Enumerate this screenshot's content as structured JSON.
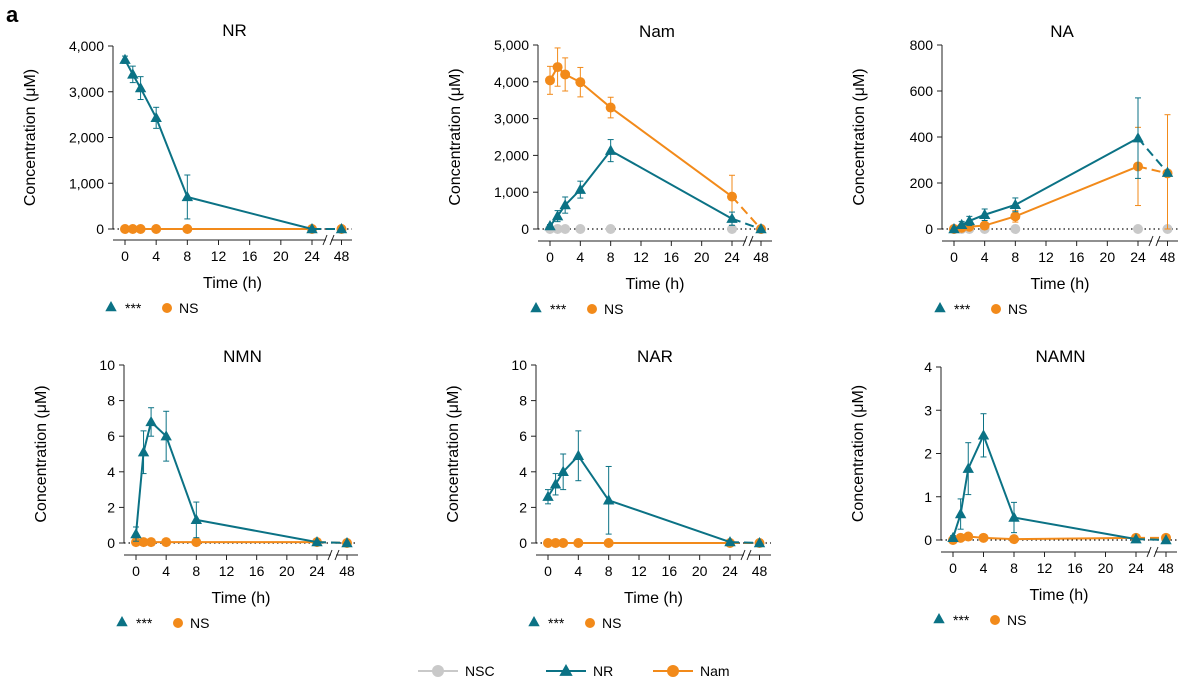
{
  "panel_letter": "a",
  "legend": {
    "items": [
      {
        "label": "NSC",
        "color": "#c9c9c9",
        "marker": "circle"
      },
      {
        "label": "NR",
        "color": "#0b7285",
        "marker": "triangle"
      },
      {
        "label": "Nam",
        "color": "#f28a1a",
        "marker": "circle"
      }
    ]
  },
  "colors": {
    "NR": "#0b7285",
    "Nam": "#f28a1a",
    "NSC": "#c9c9c9"
  },
  "chart_data": [
    {
      "type": "line",
      "title": "NR",
      "xlabel": "Time (h)",
      "ylabel": "Concentration (μM)",
      "xticks": [
        "0",
        "4",
        "8",
        "12",
        "16",
        "20",
        "24",
        "48"
      ],
      "ylim": [
        0,
        4000
      ],
      "yticks": [
        "0",
        "1,000",
        "2,000",
        "3,000",
        "4,000"
      ],
      "x": [
        0,
        1,
        2,
        4,
        8,
        24,
        48
      ],
      "series": [
        {
          "name": "NR",
          "values": [
            3700,
            3380,
            3080,
            2430,
            700,
            0,
            0
          ],
          "errors": [
            80,
            180,
            250,
            230,
            480,
            0,
            0
          ]
        },
        {
          "name": "Nam",
          "values": [
            0,
            0,
            0,
            0,
            0,
            0,
            0
          ],
          "errors": [
            0,
            0,
            0,
            0,
            0,
            0,
            0
          ]
        }
      ],
      "significance": {
        "NR": "***",
        "Nam": "NS"
      }
    },
    {
      "type": "line",
      "title": "Nam",
      "xlabel": "Time (h)",
      "ylabel": "Concentration (μM)",
      "xticks": [
        "0",
        "4",
        "8",
        "12",
        "16",
        "20",
        "24",
        "48"
      ],
      "ylim": [
        0,
        5000
      ],
      "yticks": [
        "0",
        "1,000",
        "2,000",
        "3,000",
        "4,000",
        "5,000"
      ],
      "x": [
        0,
        1,
        2,
        4,
        8,
        24,
        48
      ],
      "series": [
        {
          "name": "NSC",
          "values": [
            0,
            0,
            0,
            0,
            0,
            0,
            0
          ],
          "errors": [
            0,
            0,
            0,
            0,
            0,
            0,
            0
          ]
        },
        {
          "name": "NR",
          "values": [
            80,
            350,
            650,
            1070,
            2130,
            280,
            0
          ],
          "errors": [
            40,
            150,
            220,
            230,
            300,
            180,
            0
          ]
        },
        {
          "name": "Nam",
          "values": [
            4040,
            4400,
            4200,
            3990,
            3300,
            880,
            0
          ],
          "errors": [
            380,
            520,
            450,
            400,
            280,
            580,
            0
          ]
        }
      ],
      "significance": {
        "NR": "***",
        "Nam": "NS"
      }
    },
    {
      "type": "line",
      "title": "NA",
      "xlabel": "Time (h)",
      "ylabel": "Concentration (μM)",
      "xticks": [
        "0",
        "4",
        "8",
        "12",
        "16",
        "20",
        "24",
        "48"
      ],
      "ylim": [
        0,
        800
      ],
      "yticks": [
        "0",
        "200",
        "400",
        "600",
        "800"
      ],
      "x": [
        0,
        1,
        2,
        4,
        8,
        24,
        48
      ],
      "series": [
        {
          "name": "NSC",
          "values": [
            0,
            0,
            0,
            0,
            0,
            0,
            0
          ],
          "errors": [
            0,
            0,
            0,
            0,
            0,
            0,
            0
          ]
        },
        {
          "name": "NR",
          "values": [
            0,
            18,
            35,
            62,
            105,
            395,
            245
          ],
          "errors": [
            0,
            15,
            20,
            25,
            30,
            175,
            0
          ]
        },
        {
          "name": "Nam",
          "values": [
            0,
            5,
            10,
            15,
            55,
            272,
            242
          ],
          "errors": [
            0,
            5,
            6,
            8,
            25,
            170,
            255
          ]
        }
      ],
      "significance": {
        "NR": "***",
        "Nam": "NS"
      }
    },
    {
      "type": "line",
      "title": "NMN",
      "xlabel": "Time (h)",
      "ylabel": "Concentration (μM)",
      "xticks": [
        "0",
        "4",
        "8",
        "12",
        "16",
        "20",
        "24",
        "48"
      ],
      "ylim": [
        0,
        10
      ],
      "yticks": [
        "0",
        "2",
        "4",
        "6",
        "8",
        "10"
      ],
      "x": [
        0,
        1,
        2,
        4,
        8,
        24,
        48
      ],
      "series": [
        {
          "name": "NR",
          "values": [
            0.5,
            5.1,
            6.8,
            6.0,
            1.3,
            0.05,
            0
          ],
          "errors": [
            0.4,
            1.2,
            0.8,
            1.4,
            1.0,
            0.05,
            0
          ]
        },
        {
          "name": "Nam",
          "values": [
            0.05,
            0.05,
            0.05,
            0.05,
            0.05,
            0.05,
            0
          ],
          "errors": [
            0.02,
            0.1,
            0.15,
            0.05,
            0.02,
            0.02,
            0
          ]
        }
      ],
      "significance": {
        "NR": "***",
        "Nam": "NS"
      }
    },
    {
      "type": "line",
      "title": "NAR",
      "xlabel": "Time (h)",
      "ylabel": "Concentration (μM)",
      "xticks": [
        "0",
        "4",
        "8",
        "12",
        "16",
        "20",
        "24",
        "48"
      ],
      "ylim": [
        0,
        10
      ],
      "yticks": [
        "0",
        "2",
        "4",
        "6",
        "8",
        "10"
      ],
      "x": [
        0,
        1,
        2,
        4,
        8,
        24,
        48
      ],
      "series": [
        {
          "name": "NR",
          "values": [
            2.6,
            3.3,
            4.0,
            4.9,
            2.4,
            0.05,
            0
          ],
          "errors": [
            0.4,
            0.6,
            1.0,
            1.4,
            1.9,
            0.02,
            0
          ]
        },
        {
          "name": "Nam",
          "values": [
            0,
            0,
            0,
            0,
            0,
            0,
            0
          ],
          "errors": [
            0,
            0,
            0,
            0,
            0,
            0,
            0
          ]
        }
      ],
      "significance": {
        "NR": "***",
        "Nam": "NS"
      }
    },
    {
      "type": "line",
      "title": "NAMN",
      "xlabel": "Time (h)",
      "ylabel": "Concentration (μM)",
      "xticks": [
        "0",
        "4",
        "8",
        "12",
        "16",
        "20",
        "24",
        "48"
      ],
      "ylim": [
        0,
        4
      ],
      "yticks": [
        "0",
        "1",
        "2",
        "3",
        "4"
      ],
      "x": [
        0,
        1,
        2,
        4,
        8,
        24,
        48
      ],
      "series": [
        {
          "name": "NR",
          "values": [
            0.05,
            0.6,
            1.65,
            2.42,
            0.52,
            0.02,
            0
          ],
          "errors": [
            0.05,
            0.35,
            0.6,
            0.5,
            0.35,
            0.02,
            0
          ]
        },
        {
          "name": "Nam",
          "values": [
            0,
            0.05,
            0.08,
            0.05,
            0.02,
            0.05,
            0.05
          ],
          "errors": [
            0.02,
            0.04,
            0.05,
            0.03,
            0.02,
            0.03,
            0.03
          ]
        }
      ],
      "significance": {
        "NR": "***",
        "Nam": "NS"
      }
    }
  ]
}
